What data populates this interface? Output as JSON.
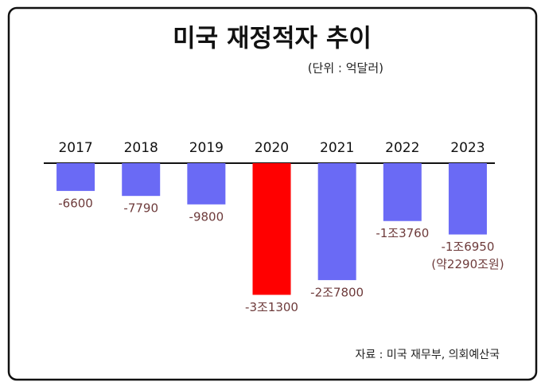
{
  "chart_data": {
    "type": "bar",
    "title": "미국 재정적자 추이",
    "subtitle": "(단위 : 억달러)",
    "categories": [
      "2017",
      "2018",
      "2019",
      "2020",
      "2021",
      "2022",
      "2023"
    ],
    "values": [
      -6600,
      -7790,
      -9800,
      -31300,
      -27800,
      -13760,
      -16950
    ],
    "value_labels": [
      "-6600",
      "-7790",
      "-9800",
      "-3조1300",
      "-2조7800",
      "-1조3760",
      "-1조6950"
    ],
    "colors": [
      "#6a6af5",
      "#6a6af5",
      "#6a6af5",
      "#ff0000",
      "#6a6af5",
      "#6a6af5",
      "#6a6af5"
    ],
    "label_color": "#6e3b3b",
    "annotation": "(약2290조원)",
    "source": "자료 : 미국 재무부, 의회예산국",
    "ylim": [
      -35000,
      0
    ]
  }
}
